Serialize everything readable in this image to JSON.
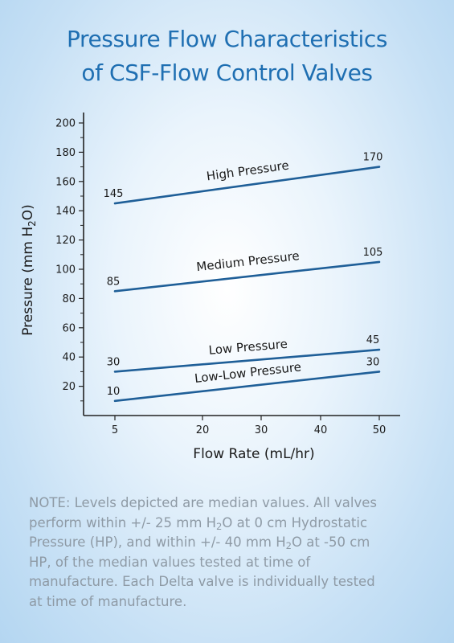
{
  "title": {
    "line1": "Pressure Flow Characteristics",
    "line2": "of CSF-Flow Control Valves"
  },
  "chart_data": {
    "type": "line",
    "xlabel": "Flow Rate (mL/hr)",
    "ylabel": {
      "pre": "Pressure (mm H",
      "sub": "2",
      "post": "O)"
    },
    "x_ticks": [
      5,
      20,
      30,
      40,
      50
    ],
    "y_ticks": [
      20,
      40,
      60,
      80,
      100,
      120,
      140,
      160,
      180,
      200
    ],
    "series": [
      {
        "name": "High Pressure",
        "x": [
          5,
          50
        ],
        "y": [
          145,
          170
        ],
        "labels": [
          "145",
          "170"
        ],
        "color": "#1f5f98"
      },
      {
        "name": "Medium Pressure",
        "x": [
          5,
          50
        ],
        "y": [
          85,
          105
        ],
        "labels": [
          "85",
          "105"
        ],
        "color": "#1f5f98"
      },
      {
        "name": "Low Pressure",
        "x": [
          5,
          50
        ],
        "y": [
          30,
          45
        ],
        "labels": [
          "30",
          "45"
        ],
        "color": "#1f5f98"
      },
      {
        "name": "Low-Low Pressure",
        "x": [
          5,
          50
        ],
        "y": [
          10,
          30
        ],
        "labels": [
          "10",
          "30"
        ],
        "color": "#1f5f98"
      }
    ],
    "grid": false
  },
  "note": {
    "line1": "NOTE: Levels depicted are median values. All valves",
    "line2_pre": "perform within +/- 25 mm H",
    "line2_sub": "2",
    "line2_post": "O at 0 cm Hydrostatic",
    "line3_pre": "Pressure (HP), and within +/- 40 mm H",
    "line3_sub": "2",
    "line3_post": "O at -50 cm",
    "line4": "HP, of the median values tested at time of",
    "line5": "manufacture. Each Delta valve is individually tested",
    "line6": "at time of manufacture."
  }
}
